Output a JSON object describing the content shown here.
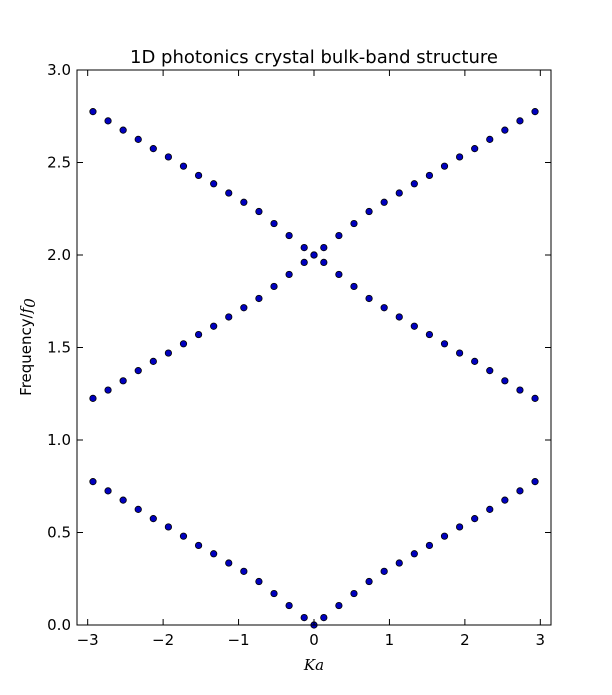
{
  "chart_data": {
    "type": "scatter",
    "title": "1D photonics crystal bulk-band structure",
    "xlabel": "Ka",
    "ylabel_text": "Frequency/",
    "ylabel_math_base": "f",
    "ylabel_math_sub": "0",
    "xlim": [
      -3.1416,
      3.1416
    ],
    "ylim": [
      0.0,
      3.0
    ],
    "xticks": [
      -3,
      -2,
      -1,
      0,
      1,
      2,
      3
    ],
    "xtick_labels": [
      "−3",
      "−2",
      "−1",
      "0",
      "1",
      "2",
      "3"
    ],
    "yticks": [
      0.0,
      0.5,
      1.0,
      1.5,
      2.0,
      2.5,
      3.0
    ],
    "ytick_labels": [
      "0.0",
      "0.5",
      "1.0",
      "1.5",
      "2.0",
      "2.5",
      "3.0"
    ],
    "grid": false,
    "marker_color": "#0000bf",
    "series": [
      {
        "x": [
          -2.93,
          -2.73,
          -2.53,
          -2.33,
          -2.13,
          -1.93,
          -1.73,
          -1.53,
          -1.33,
          -1.13,
          -0.93,
          -0.73,
          -0.53,
          -0.33,
          -0.13,
          0.0,
          0.13,
          0.33,
          0.53,
          0.73,
          0.93,
          1.13,
          1.33,
          1.53,
          1.73,
          1.93,
          2.13,
          2.33,
          2.53,
          2.73,
          2.93
        ],
        "y": [
          0.775,
          0.725,
          0.675,
          0.625,
          0.575,
          0.53,
          0.48,
          0.43,
          0.385,
          0.335,
          0.29,
          0.235,
          0.17,
          0.105,
          0.04,
          0.0,
          0.04,
          0.105,
          0.17,
          0.235,
          0.29,
          0.335,
          0.385,
          0.43,
          0.48,
          0.53,
          0.575,
          0.625,
          0.675,
          0.725,
          0.775
        ]
      },
      {
        "x": [
          -2.93,
          -2.73,
          -2.53,
          -2.33,
          -2.13,
          -1.93,
          -1.73,
          -1.53,
          -1.33,
          -1.13,
          -0.93,
          -0.73,
          -0.53,
          -0.33,
          -0.13,
          0.0,
          0.13,
          0.33,
          0.53,
          0.73,
          0.93,
          1.13,
          1.33,
          1.53,
          1.73,
          1.93,
          2.13,
          2.33,
          2.53,
          2.73,
          2.93
        ],
        "y": [
          1.225,
          1.27,
          1.32,
          1.375,
          1.425,
          1.47,
          1.52,
          1.57,
          1.615,
          1.665,
          1.715,
          1.765,
          1.83,
          1.895,
          1.96,
          2.0,
          2.04,
          2.105,
          2.17,
          2.235,
          2.285,
          2.335,
          2.385,
          2.43,
          2.48,
          2.53,
          2.575,
          2.625,
          2.675,
          2.725,
          2.775
        ]
      },
      {
        "x": [
          -2.93,
          -2.73,
          -2.53,
          -2.33,
          -2.13,
          -1.93,
          -1.73,
          -1.53,
          -1.33,
          -1.13,
          -0.93,
          -0.73,
          -0.53,
          -0.33,
          -0.13,
          0.0,
          0.13,
          0.33,
          0.53,
          0.73,
          0.93,
          1.13,
          1.33,
          1.53,
          1.73,
          1.93,
          2.13,
          2.33,
          2.53,
          2.73,
          2.93
        ],
        "y": [
          2.775,
          2.725,
          2.675,
          2.625,
          2.575,
          2.53,
          2.48,
          2.43,
          2.385,
          2.335,
          2.285,
          2.235,
          2.17,
          2.105,
          2.04,
          2.0,
          1.96,
          1.895,
          1.83,
          1.765,
          1.715,
          1.665,
          1.615,
          1.57,
          1.52,
          1.47,
          1.425,
          1.375,
          1.32,
          1.27,
          1.225
        ]
      }
    ]
  }
}
